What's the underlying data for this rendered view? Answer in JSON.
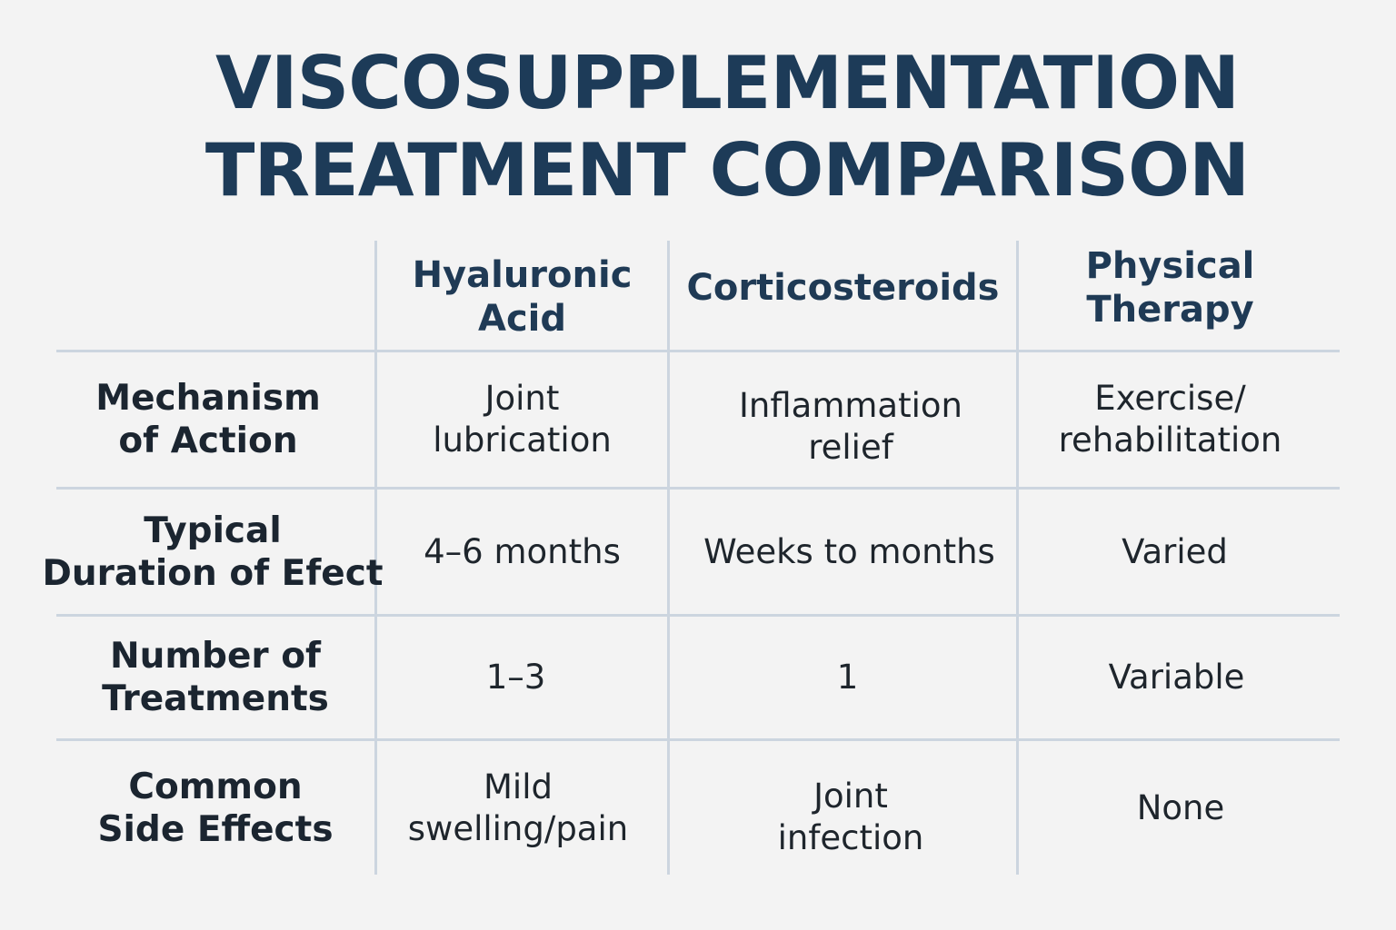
{
  "title": {
    "line1": "VISCOSUPPLEMENTATION",
    "line2": "TREATMENT COMPARISON"
  },
  "table": {
    "columns": [
      "Hyaluronic\nAcid",
      "Corticosteroids",
      "Physical\nTherapy"
    ],
    "rows": [
      {
        "label": "Mechanism\nof Action",
        "values": [
          "Joint\nlubrication",
          "Inflammation\nrelief",
          "Exercise/\nrehabilitation"
        ]
      },
      {
        "label": "Typical\nDuration of Efect",
        "values": [
          "4–6 months",
          "Weeks to months",
          "Varied"
        ]
      },
      {
        "label": "Number of\nTreatments",
        "values": [
          "1–3",
          "1",
          "Variable"
        ]
      },
      {
        "label": "Common\nSide Effects",
        "values": [
          "Mild\nswelling/pain",
          "Joint\ninfection",
          "None"
        ]
      }
    ]
  }
}
